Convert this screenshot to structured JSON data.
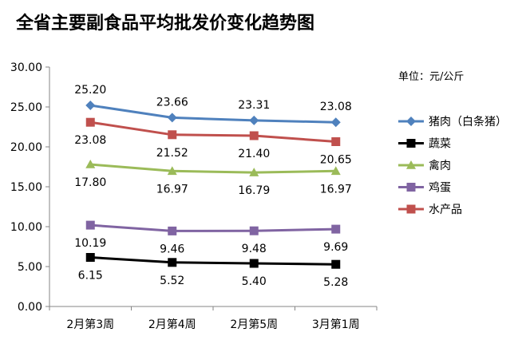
{
  "chart_data": {
    "type": "line",
    "title": "全省主要副食品平均批发价变化趋势图",
    "unit_label": "单位：元/公斤",
    "categories": [
      "2月第3周",
      "2月第4周",
      "2月第5周",
      "3月第1周"
    ],
    "ylim": [
      0,
      30
    ],
    "yticks": [
      "0.00",
      "5.00",
      "10.00",
      "15.00",
      "20.00",
      "25.00",
      "30.00"
    ],
    "grid": false,
    "legend_position": "right",
    "series": [
      {
        "name": "猪肉（白条猪）",
        "color": "#4F81BD",
        "marker": "diamond",
        "values": [
          25.2,
          23.66,
          23.31,
          23.08
        ],
        "labels": [
          "25.20",
          "23.66",
          "23.31",
          "23.08"
        ],
        "label_position": "above"
      },
      {
        "name": "蔬菜",
        "color": "#000000",
        "marker": "square",
        "values": [
          6.15,
          5.52,
          5.4,
          5.28
        ],
        "labels": [
          "6.15",
          "5.52",
          "5.40",
          "5.28"
        ],
        "label_position": "below"
      },
      {
        "name": "禽肉",
        "color": "#9BBB59",
        "marker": "triangle",
        "values": [
          17.8,
          16.97,
          16.79,
          16.97
        ],
        "labels": [
          "17.80",
          "16.97",
          "16.79",
          "16.97"
        ],
        "label_position": "below"
      },
      {
        "name": "鸡蛋",
        "color": "#8064A2",
        "marker": "square",
        "values": [
          10.19,
          9.46,
          9.48,
          9.69
        ],
        "labels": [
          "10.19",
          "9.46",
          "9.48",
          "9.69"
        ],
        "label_position": "below"
      },
      {
        "name": "水产品",
        "color": "#C0504D",
        "marker": "square",
        "values": [
          23.08,
          21.52,
          21.4,
          20.65
        ],
        "labels": [
          "23.08",
          "21.52",
          "21.40",
          "20.65"
        ],
        "label_position": "below"
      }
    ]
  }
}
